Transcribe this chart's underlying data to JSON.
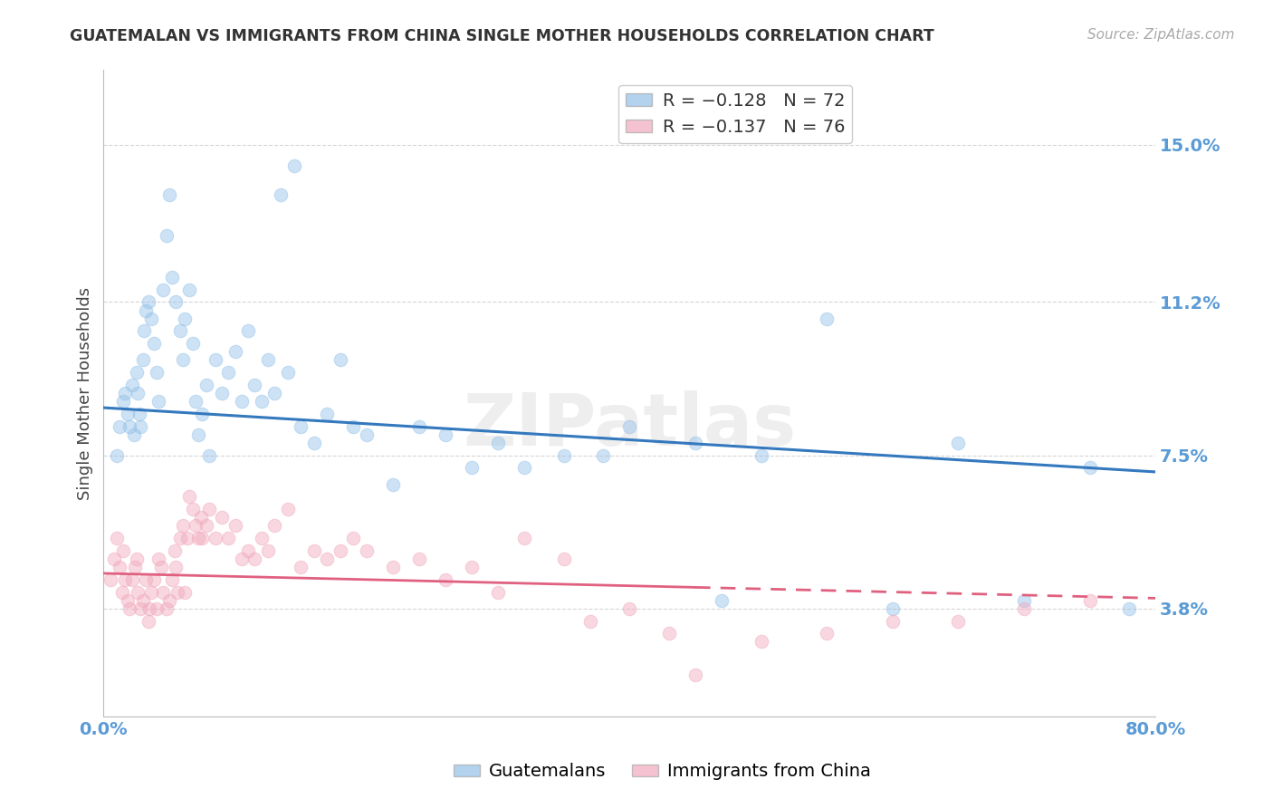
{
  "title": "GUATEMALAN VS IMMIGRANTS FROM CHINA SINGLE MOTHER HOUSEHOLDS CORRELATION CHART",
  "source": "Source: ZipAtlas.com",
  "ylabel": "Single Mother Households",
  "yticks": [
    3.8,
    7.5,
    11.2,
    15.0
  ],
  "ytick_labels": [
    "3.8%",
    "7.5%",
    "11.2%",
    "15.0%"
  ],
  "xlim": [
    0.0,
    80.0
  ],
  "ylim": [
    1.2,
    16.8
  ],
  "blue_color": "#92c0e8",
  "pink_color": "#f0a8bc",
  "blue_line_color": "#3478be",
  "pink_line_color": "#e06080",
  "legend_R_blue": "R = −0.128",
  "legend_N_blue": "N = 72",
  "legend_R_pink": "R = −0.137",
  "legend_N_pink": "N = 76",
  "watermark": "ZIPatlas",
  "blue_scatter_x": [
    1.0,
    1.2,
    1.5,
    1.6,
    1.8,
    2.0,
    2.2,
    2.3,
    2.5,
    2.6,
    2.7,
    2.8,
    3.0,
    3.1,
    3.2,
    3.4,
    3.6,
    3.8,
    4.0,
    4.2,
    4.5,
    4.8,
    5.0,
    5.2,
    5.5,
    5.8,
    6.0,
    6.2,
    6.5,
    6.8,
    7.0,
    7.2,
    7.5,
    7.8,
    8.0,
    8.5,
    9.0,
    9.5,
    10.0,
    10.5,
    11.0,
    11.5,
    12.0,
    12.5,
    13.0,
    14.0,
    15.0,
    16.0,
    17.0,
    18.0,
    19.0,
    20.0,
    22.0,
    24.0,
    26.0,
    28.0,
    30.0,
    32.0,
    35.0,
    38.0,
    40.0,
    45.0,
    47.0,
    50.0,
    55.0,
    60.0,
    65.0,
    70.0,
    75.0,
    78.0,
    13.5,
    14.5
  ],
  "blue_scatter_y": [
    7.5,
    8.2,
    8.8,
    9.0,
    8.5,
    8.2,
    9.2,
    8.0,
    9.5,
    9.0,
    8.5,
    8.2,
    9.8,
    10.5,
    11.0,
    11.2,
    10.8,
    10.2,
    9.5,
    8.8,
    11.5,
    12.8,
    13.8,
    11.8,
    11.2,
    10.5,
    9.8,
    10.8,
    11.5,
    10.2,
    8.8,
    8.0,
    8.5,
    9.2,
    7.5,
    9.8,
    9.0,
    9.5,
    10.0,
    8.8,
    10.5,
    9.2,
    8.8,
    9.8,
    9.0,
    9.5,
    8.2,
    7.8,
    8.5,
    9.8,
    8.2,
    8.0,
    6.8,
    8.2,
    8.0,
    7.2,
    7.8,
    7.2,
    7.5,
    7.5,
    8.2,
    7.8,
    4.0,
    7.5,
    10.8,
    3.8,
    7.8,
    4.0,
    7.2,
    3.8,
    13.8,
    14.5
  ],
  "pink_scatter_x": [
    0.5,
    0.8,
    1.0,
    1.2,
    1.4,
    1.5,
    1.6,
    1.8,
    2.0,
    2.2,
    2.4,
    2.5,
    2.6,
    2.8,
    3.0,
    3.2,
    3.4,
    3.5,
    3.6,
    3.8,
    4.0,
    4.2,
    4.4,
    4.5,
    4.8,
    5.0,
    5.2,
    5.4,
    5.5,
    5.6,
    5.8,
    6.0,
    6.2,
    6.4,
    6.5,
    6.8,
    7.0,
    7.2,
    7.4,
    7.5,
    7.8,
    8.0,
    8.5,
    9.0,
    9.5,
    10.0,
    10.5,
    11.0,
    11.5,
    12.0,
    12.5,
    13.0,
    14.0,
    15.0,
    16.0,
    17.0,
    18.0,
    19.0,
    20.0,
    22.0,
    24.0,
    26.0,
    28.0,
    30.0,
    32.0,
    35.0,
    37.0,
    40.0,
    43.0,
    45.0,
    50.0,
    55.0,
    60.0,
    65.0,
    70.0,
    75.0
  ],
  "pink_scatter_y": [
    4.5,
    5.0,
    5.5,
    4.8,
    4.2,
    5.2,
    4.5,
    4.0,
    3.8,
    4.5,
    4.8,
    5.0,
    4.2,
    3.8,
    4.0,
    4.5,
    3.5,
    3.8,
    4.2,
    4.5,
    3.8,
    5.0,
    4.8,
    4.2,
    3.8,
    4.0,
    4.5,
    5.2,
    4.8,
    4.2,
    5.5,
    5.8,
    4.2,
    5.5,
    6.5,
    6.2,
    5.8,
    5.5,
    6.0,
    5.5,
    5.8,
    6.2,
    5.5,
    6.0,
    5.5,
    5.8,
    5.0,
    5.2,
    5.0,
    5.5,
    5.2,
    5.8,
    6.2,
    4.8,
    5.2,
    5.0,
    5.2,
    5.5,
    5.2,
    4.8,
    5.0,
    4.5,
    4.8,
    4.2,
    5.5,
    5.0,
    3.5,
    3.8,
    3.2,
    2.2,
    3.0,
    3.2,
    3.5,
    3.5,
    3.8,
    4.0
  ],
  "blue_trend_x": [
    0.0,
    80.0
  ],
  "blue_trend_y": [
    8.65,
    7.1
  ],
  "pink_trend_x": [
    0.0,
    80.0
  ],
  "pink_trend_y": [
    4.65,
    4.05
  ],
  "grid_color": "#cccccc",
  "title_color": "#333333",
  "tick_color": "#5b9bd5",
  "background_color": "#ffffff",
  "marker_size": 110,
  "marker_alpha": 0.45,
  "marker_linewidth": 0.8
}
